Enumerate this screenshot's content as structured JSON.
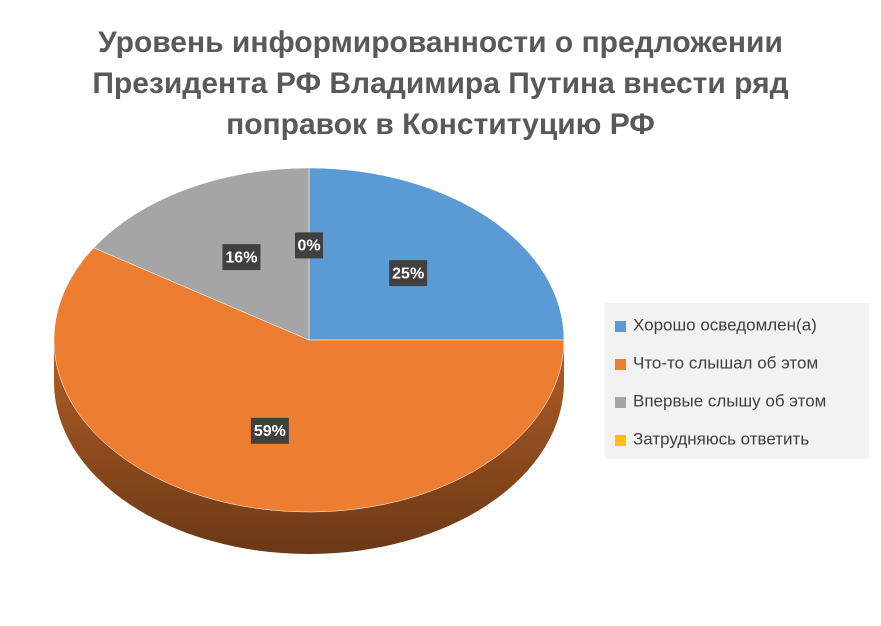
{
  "chart_data": {
    "type": "pie",
    "title": "Уровень информированности о предложении\nПрезидента РФ Владимира Путина внести ряд\nпоправок в Конституцию РФ",
    "categories": [
      "Хорошо осведомлен(а)",
      "Что-то слышал об этом",
      "Впервые слышу об этом",
      "Затрудняюсь ответить"
    ],
    "values": [
      25,
      59,
      16,
      0
    ],
    "value_labels": [
      "25%",
      "59%",
      "16%",
      "0%"
    ],
    "colors": [
      "#5b9bd5",
      "#ed7d31",
      "#a5a5a5",
      "#ffc000"
    ],
    "legend": "right"
  }
}
